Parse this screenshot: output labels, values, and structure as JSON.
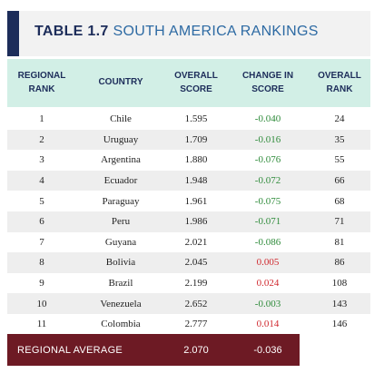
{
  "table": {
    "label": "TABLE 1.7",
    "title": "SOUTH AMERICA RANKINGS",
    "headers": [
      "REGIONAL\nRANK",
      "COUNTRY",
      "OVERALL\nSCORE",
      "CHANGE IN\nSCORE",
      "OVERALL\nRANK"
    ],
    "rows": [
      {
        "regional_rank": "1",
        "country": "Chile",
        "overall_score": "1.595",
        "change": "-0.040",
        "overall_rank": "24"
      },
      {
        "regional_rank": "2",
        "country": "Uruguay",
        "overall_score": "1.709",
        "change": "-0.016",
        "overall_rank": "35"
      },
      {
        "regional_rank": "3",
        "country": "Argentina",
        "overall_score": "1.880",
        "change": "-0.076",
        "overall_rank": "55"
      },
      {
        "regional_rank": "4",
        "country": "Ecuador",
        "overall_score": "1.948",
        "change": "-0.072",
        "overall_rank": "66"
      },
      {
        "regional_rank": "5",
        "country": "Paraguay",
        "overall_score": "1.961",
        "change": "-0.075",
        "overall_rank": "68"
      },
      {
        "regional_rank": "6",
        "country": "Peru",
        "overall_score": "1.986",
        "change": "-0.071",
        "overall_rank": "71"
      },
      {
        "regional_rank": "7",
        "country": "Guyana",
        "overall_score": "2.021",
        "change": "-0.086",
        "overall_rank": "81"
      },
      {
        "regional_rank": "8",
        "country": "Bolivia",
        "overall_score": "2.045",
        "change": "0.005",
        "overall_rank": "86"
      },
      {
        "regional_rank": "9",
        "country": "Brazil",
        "overall_score": "2.199",
        "change": "0.024",
        "overall_rank": "108"
      },
      {
        "regional_rank": "10",
        "country": "Venezuela",
        "overall_score": "2.652",
        "change": "-0.003",
        "overall_rank": "143"
      },
      {
        "regional_rank": "11",
        "country": "Colombia",
        "overall_score": "2.777",
        "change": "0.014",
        "overall_rank": "146"
      }
    ],
    "footer": {
      "label": "REGIONAL AVERAGE",
      "overall_score": "2.070",
      "change": "-0.036"
    }
  },
  "colors": {
    "accent": "#1d2d5a",
    "title_light": "#2d6aa3",
    "header_bg": "#d2efe6",
    "negative_change": "#2e8b3a",
    "positive_change": "#d0282e",
    "footer_bg": "#6d1a24"
  }
}
